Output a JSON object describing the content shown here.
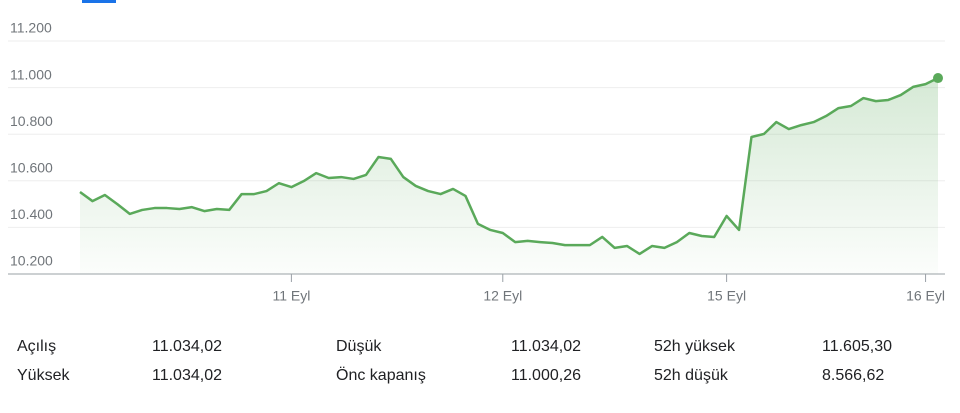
{
  "chart_data": {
    "type": "line",
    "categories": [
      null,
      null,
      null,
      null,
      null,
      null,
      null,
      null,
      null,
      null,
      null,
      null,
      null,
      null,
      null,
      null,
      null,
      "11 Eyl",
      null,
      null,
      null,
      null,
      null,
      null,
      null,
      null,
      null,
      null,
      null,
      null,
      null,
      null,
      null,
      null,
      "12 Eyl",
      null,
      null,
      null,
      null,
      null,
      null,
      null,
      null,
      null,
      null,
      null,
      null,
      null,
      null,
      null,
      null,
      null,
      "15 Eyl",
      null,
      null,
      null,
      null,
      null,
      null,
      null,
      null,
      null,
      null,
      null,
      null,
      null,
      null,
      null,
      "16 Eyl",
      null
    ],
    "series": [
      {
        "color": "#5aa95a",
        "values": [
          10552,
          10513,
          10539,
          10500,
          10458,
          10475,
          10483,
          10483,
          10479,
          10487,
          10470,
          10479,
          10475,
          10543,
          10543,
          10556,
          10590,
          10573,
          10599,
          10633,
          10612,
          10616,
          10608,
          10625,
          10702,
          10694,
          10616,
          10578,
          10556,
          10543,
          10565,
          10535,
          10415,
          10389,
          10376,
          10337,
          10342,
          10337,
          10333,
          10324,
          10324,
          10324,
          10359,
          10312,
          10320,
          10286,
          10320,
          10312,
          10337,
          10376,
          10363,
          10359,
          10449,
          10389,
          10788,
          10801,
          10852,
          10822,
          10839,
          10852,
          10878,
          10912,
          10921,
          10955,
          10942,
          10947,
          10968,
          11003,
          11015,
          11041
        ]
      }
    ],
    "ylim": [
      10200,
      11200
    ],
    "yticks": [
      {
        "value": 10200,
        "label": "10.200"
      },
      {
        "value": 10400,
        "label": "10.400"
      },
      {
        "value": 10600,
        "label": "10.600"
      },
      {
        "value": 10800,
        "label": "10.800"
      },
      {
        "value": 11000,
        "label": "11.000"
      },
      {
        "value": 11200,
        "label": "11.200"
      }
    ],
    "grid": true
  },
  "stats": [
    [
      {
        "label": "Açılış",
        "value": "11.034,02"
      },
      {
        "label": "Düşük",
        "value": "11.034,02"
      },
      {
        "label": "52h yüksek",
        "value": "11.605,30"
      }
    ],
    [
      {
        "label": "Yüksek",
        "value": "11.034,02"
      },
      {
        "label": "Önc kapanış",
        "value": "11.000,26"
      },
      {
        "label": "52h düşük",
        "value": "8.566,62"
      }
    ]
  ]
}
